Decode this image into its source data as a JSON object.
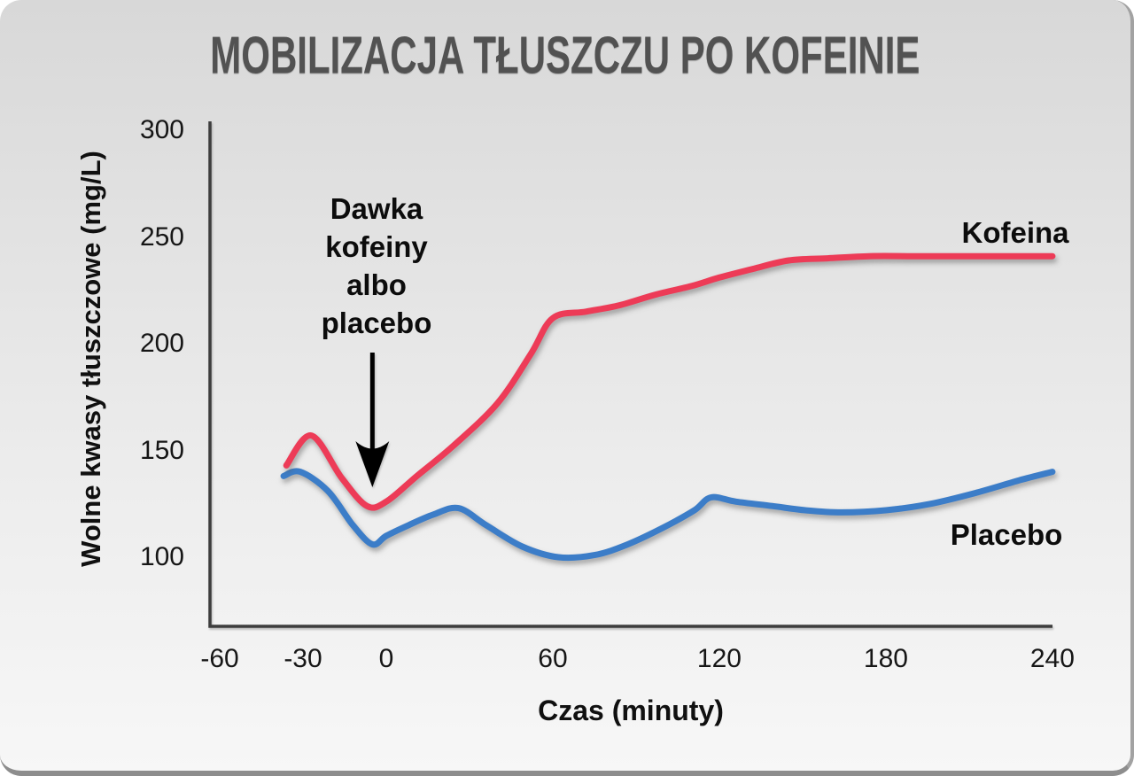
{
  "colors": {
    "kofeina_line": "#ed3b57",
    "placebo_line": "#3c7dc8",
    "axis": "#3d3d3d",
    "title_text": "#525252",
    "label_text": "#0c0c0c",
    "card_background_top": "#d8d8d8",
    "card_background_bottom": "#f7f7f7"
  },
  "chart_data": {
    "type": "line",
    "title": "MOBILIZACJA TŁUSZCZU PO KOFEINIE",
    "xlabel": "Czas (minuty)",
    "ylabel": "Wolne kwasy tłuszczowe (mg/L)",
    "xlim": [
      -60,
      240
    ],
    "ylim": [
      100,
      300
    ],
    "grid": false,
    "legend_position": "inline-labels-at-line-ends",
    "x_ticks": [
      -60,
      -30,
      0,
      60,
      120,
      180,
      240
    ],
    "x_tick_labels": [
      "-60",
      "-30",
      "0",
      "60",
      "120",
      "180",
      "240"
    ],
    "y_ticks": [
      300,
      250,
      200,
      150,
      100
    ],
    "y_tick_labels": [
      "300",
      "250",
      "200",
      "150",
      "100"
    ],
    "annotation": {
      "lines": [
        "Dawka",
        "kofeiny",
        "albo",
        "placebo"
      ],
      "arrow_points_to_x": -5
    },
    "series": [
      {
        "name": "Kofeina",
        "color": "#ed3b57",
        "x": [
          -36,
          -27,
          -16,
          -7,
          0,
          11,
          24,
          40,
          52,
          60,
          72,
          84,
          97,
          110,
          120,
          132,
          145,
          159,
          174,
          190,
          206,
          222,
          240
        ],
        "values": [
          143,
          157,
          137,
          124,
          126,
          138,
          152,
          172,
          195,
          212,
          215,
          218,
          223,
          227,
          231,
          235,
          239,
          240,
          241,
          241,
          241,
          241,
          241
        ]
      },
      {
        "name": "Placebo",
        "color": "#3c7dc8",
        "x": [
          -37,
          -31,
          -21,
          -12,
          -5,
          0,
          8,
          17,
          26,
          36,
          49,
          62,
          75,
          87,
          100,
          111,
          117,
          126,
          139,
          151,
          164,
          180,
          196,
          212,
          228,
          240
        ],
        "values": [
          138,
          140,
          131,
          115,
          106,
          110,
          115,
          120,
          123,
          115,
          105,
          100,
          101,
          106,
          114,
          122,
          128,
          126,
          124,
          122,
          121,
          122,
          125,
          130,
          136,
          140
        ]
      }
    ]
  }
}
